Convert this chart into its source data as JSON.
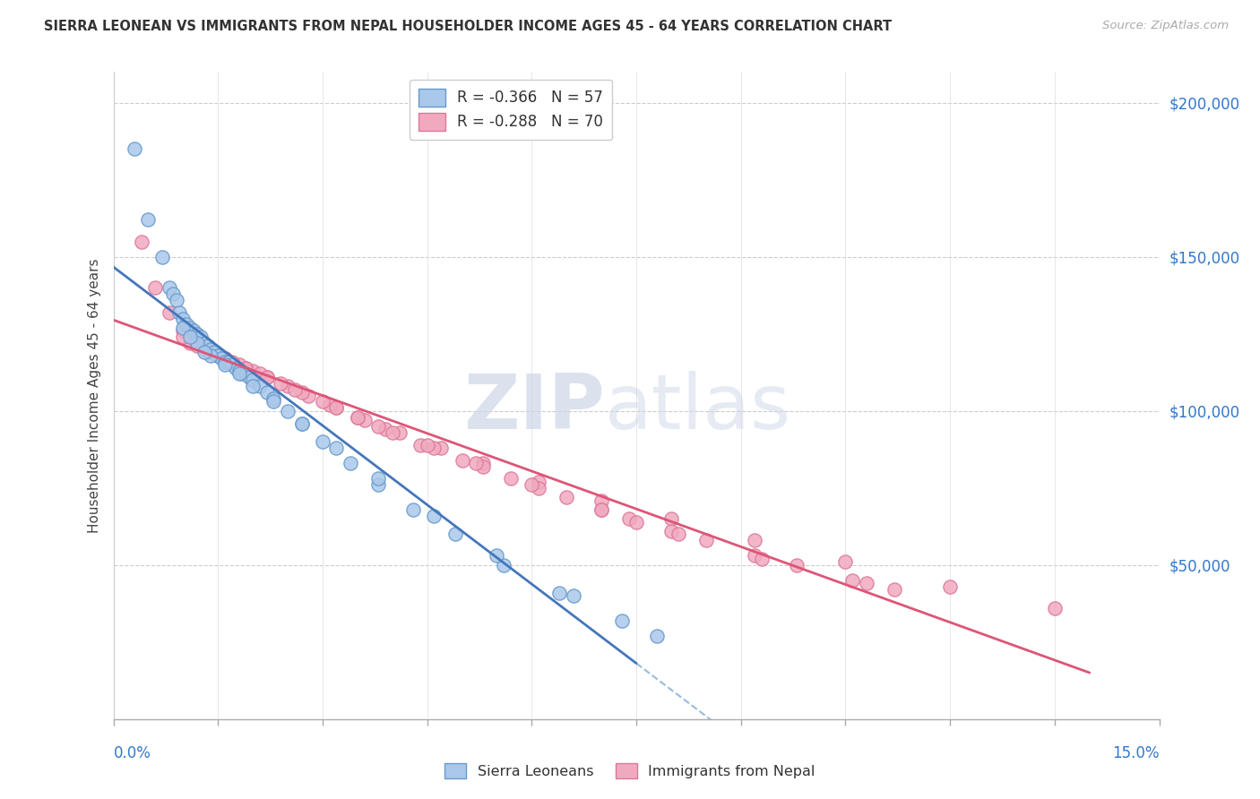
{
  "title": "SIERRA LEONEAN VS IMMIGRANTS FROM NEPAL HOUSEHOLDER INCOME AGES 45 - 64 YEARS CORRELATION CHART",
  "source": "Source: ZipAtlas.com",
  "ylabel": "Householder Income Ages 45 - 64 years",
  "xlim": [
    0.0,
    15.0
  ],
  "ylim": [
    0,
    210000
  ],
  "yticks": [
    50000,
    100000,
    150000,
    200000
  ],
  "ytick_labels": [
    "$50,000",
    "$100,000",
    "$150,000",
    "$200,000"
  ],
  "color_blue_fill": "#aac8ea",
  "color_blue_edge": "#6699cc",
  "color_pink_fill": "#f0aabf",
  "color_pink_edge": "#dd7799",
  "color_blue_line": "#4477bb",
  "color_pink_line": "#dd5577",
  "color_dashed": "#99bbdd",
  "legend_label1": "R = -0.366   N = 57",
  "legend_label2": "R = -0.288   N = 70",
  "sierra_x": [
    0.3,
    0.5,
    0.7,
    0.8,
    0.85,
    0.9,
    0.95,
    1.0,
    1.05,
    1.1,
    1.15,
    1.2,
    1.25,
    1.3,
    1.35,
    1.4,
    1.45,
    1.5,
    1.55,
    1.6,
    1.65,
    1.7,
    1.75,
    1.8,
    1.85,
    1.9,
    1.95,
    2.0,
    2.1,
    2.2,
    2.3,
    2.5,
    2.7,
    3.0,
    3.4,
    3.8,
    4.3,
    4.9,
    5.6,
    6.4,
    7.3,
    1.0,
    1.2,
    1.4,
    1.6,
    1.8,
    2.0,
    2.3,
    2.7,
    3.2,
    3.8,
    4.6,
    5.5,
    6.6,
    7.8,
    1.1,
    1.3
  ],
  "sierra_y": [
    185000,
    162000,
    150000,
    140000,
    138000,
    136000,
    132000,
    130000,
    128000,
    127000,
    126000,
    125000,
    124000,
    122000,
    121000,
    120000,
    119000,
    118000,
    117000,
    116000,
    116000,
    115000,
    114000,
    113000,
    112000,
    112000,
    111000,
    110000,
    108000,
    106000,
    104000,
    100000,
    96000,
    90000,
    83000,
    76000,
    68000,
    60000,
    50000,
    41000,
    32000,
    127000,
    122000,
    118000,
    115000,
    112000,
    108000,
    103000,
    96000,
    88000,
    78000,
    66000,
    53000,
    40000,
    27000,
    124000,
    119000
  ],
  "nepal_x": [
    0.4,
    0.6,
    0.8,
    1.0,
    1.2,
    1.4,
    1.6,
    1.8,
    2.0,
    2.2,
    2.5,
    2.8,
    3.2,
    3.6,
    4.1,
    4.7,
    5.3,
    6.1,
    7.0,
    8.0,
    9.2,
    10.5,
    12.0,
    13.5,
    1.1,
    1.3,
    1.5,
    1.7,
    1.9,
    2.1,
    2.4,
    2.7,
    3.1,
    3.5,
    3.9,
    4.4,
    5.0,
    5.7,
    6.5,
    7.4,
    8.5,
    9.8,
    11.2,
    1.0,
    1.2,
    1.4,
    1.6,
    1.9,
    2.2,
    2.6,
    3.0,
    3.5,
    4.0,
    4.6,
    5.3,
    6.1,
    7.0,
    8.0,
    9.2,
    10.6,
    3.2,
    3.8,
    4.5,
    5.2,
    6.0,
    7.0,
    8.1,
    9.3,
    10.8,
    7.5
  ],
  "nepal_y": [
    155000,
    140000,
    132000,
    126000,
    122000,
    119000,
    117000,
    115000,
    113000,
    111000,
    108000,
    105000,
    101000,
    97000,
    93000,
    88000,
    83000,
    77000,
    71000,
    65000,
    58000,
    51000,
    43000,
    36000,
    122000,
    120000,
    118000,
    116000,
    114000,
    112000,
    109000,
    106000,
    102000,
    98000,
    94000,
    89000,
    84000,
    78000,
    72000,
    65000,
    58000,
    50000,
    42000,
    124000,
    121000,
    119000,
    117000,
    114000,
    111000,
    107000,
    103000,
    98000,
    93000,
    88000,
    82000,
    75000,
    68000,
    61000,
    53000,
    45000,
    101000,
    95000,
    89000,
    83000,
    76000,
    68000,
    60000,
    52000,
    44000,
    64000
  ]
}
